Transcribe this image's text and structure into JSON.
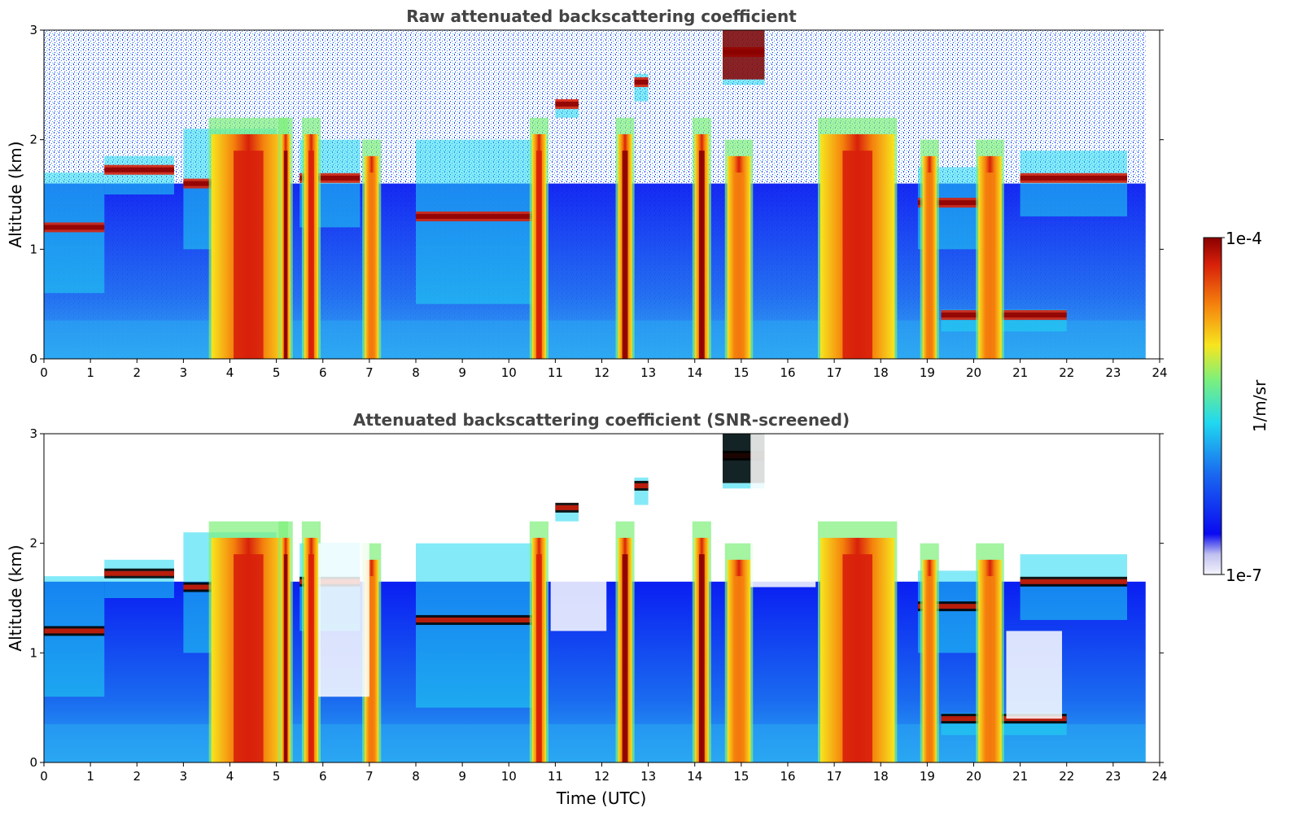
{
  "chart_data": [
    {
      "type": "heatmap",
      "title": "Raw attenuated backscattering coefficient",
      "xlabel": "",
      "ylabel": "Altitude (km)",
      "xlim": [
        0,
        24
      ],
      "ylim": [
        0,
        3
      ],
      "xticks": [
        "0",
        "1",
        "2",
        "3",
        "4",
        "5",
        "6",
        "7",
        "8",
        "9",
        "10",
        "11",
        "12",
        "13",
        "14",
        "15",
        "16",
        "17",
        "18",
        "19",
        "20",
        "21",
        "22",
        "23",
        "24"
      ],
      "yticks": [
        "0",
        "1",
        "2",
        "3"
      ],
      "data_end_time": 23.7,
      "layers": [
        {
          "from": 0.0,
          "to": 1.3,
          "base_km": 0.6,
          "top_km": 1.7
        },
        {
          "from": 1.3,
          "to": 2.8,
          "base_km": 1.5,
          "top_km": 1.85
        },
        {
          "from": 3.0,
          "to": 5.0,
          "base_km": 1.0,
          "top_km": 2.1
        },
        {
          "from": 5.5,
          "to": 6.8,
          "base_km": 1.2,
          "top_km": 2.0
        },
        {
          "from": 8.0,
          "to": 10.7,
          "base_km": 0.5,
          "top_km": 2.0
        },
        {
          "from": 11.0,
          "to": 11.5,
          "base_km": 2.2,
          "top_km": 2.35
        },
        {
          "from": 12.7,
          "to": 13.0,
          "base_km": 2.35,
          "top_km": 2.6
        },
        {
          "from": 14.6,
          "to": 15.5,
          "base_km": 2.5,
          "top_km": 3.0
        },
        {
          "from": 18.8,
          "to": 20.6,
          "base_km": 1.0,
          "top_km": 1.75
        },
        {
          "from": 21.0,
          "to": 23.3,
          "base_km": 1.3,
          "top_km": 1.9
        },
        {
          "from": 19.3,
          "to": 22.0,
          "base_km": 0.25,
          "top_km": 0.45
        }
      ],
      "precipitation_columns": [
        {
          "from": 3.6,
          "to": 5.2,
          "level": "high"
        },
        {
          "from": 5.1,
          "to": 5.3,
          "level": "max"
        },
        {
          "from": 5.6,
          "to": 5.9,
          "level": "high"
        },
        {
          "from": 6.9,
          "to": 7.2,
          "level": "medium"
        },
        {
          "from": 10.5,
          "to": 10.8,
          "level": "high"
        },
        {
          "from": 12.35,
          "to": 12.65,
          "level": "max"
        },
        {
          "from": 14.0,
          "to": 14.3,
          "level": "max"
        },
        {
          "from": 14.7,
          "to": 15.2,
          "level": "medium"
        },
        {
          "from": 16.7,
          "to": 18.3,
          "level": "high"
        },
        {
          "from": 18.9,
          "to": 19.2,
          "level": "medium"
        },
        {
          "from": 20.1,
          "to": 20.6,
          "level": "medium"
        }
      ]
    },
    {
      "type": "heatmap",
      "title": "Attenuated backscattering coefficient (SNR-screened)",
      "xlabel": "Time (UTC)",
      "ylabel": "Altitude (km)",
      "xlim": [
        0,
        24
      ],
      "ylim": [
        0,
        3
      ],
      "xticks": [
        "0",
        "1",
        "2",
        "3",
        "4",
        "5",
        "6",
        "7",
        "8",
        "9",
        "10",
        "11",
        "12",
        "13",
        "14",
        "15",
        "16",
        "17",
        "18",
        "19",
        "20",
        "21",
        "22",
        "23",
        "24"
      ],
      "yticks": [
        "0",
        "1",
        "2",
        "3"
      ],
      "data_end_time": 23.7
    }
  ],
  "colorbar": {
    "label": "1/m/sr",
    "max_label": "1e-4",
    "min_label": "1e-7",
    "colormap": "jet",
    "scale": "log"
  },
  "colors": {
    "low": "#f4f4fb",
    "blue": "#0a1ef2",
    "cyan": "#20d8f0",
    "green": "#7ef07a",
    "yellow": "#f7e61e",
    "orange": "#f5820d",
    "red": "#d8200a",
    "darkred": "#8a0000"
  }
}
